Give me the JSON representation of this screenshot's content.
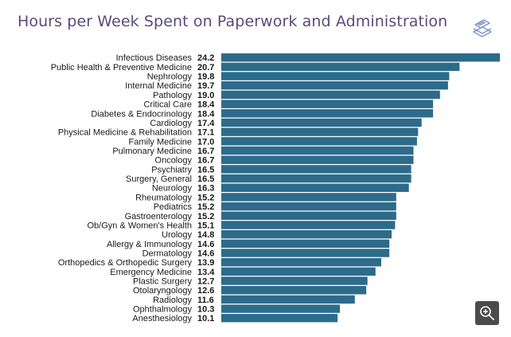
{
  "page": {
    "title": "Hours per Week Spent on Paperwork and Administration"
  },
  "colors": {
    "bar": "#2d6b8b",
    "title": "#5b4a7a",
    "text": "#1a1a1a",
    "icon": "#7a90c9"
  },
  "icons": {
    "logo": "paperwork-stack-icon",
    "zoom": "zoom-in-icon"
  },
  "chart_data": {
    "type": "bar",
    "orientation": "horizontal",
    "title": "Hours per Week Spent on Paperwork and Administration",
    "categories": [
      "Infectious Diseases",
      "Public Health & Preventive Medicine",
      "Nephrology",
      "Internal Medicine",
      "Pathology",
      "Critical Care",
      "Diabetes & Endocrinology",
      "Cardiology",
      "Physical Medicine & Rehabilitation",
      "Family Medicine",
      "Pulmonary Medicine",
      "Oncology",
      "Psychiatry",
      "Surgery, General",
      "Neurology",
      "Rheumatology",
      "Pediatrics",
      "Gastroenterology",
      "Ob/Gyn & Women's Health",
      "Urology",
      "Allergy & Immunology",
      "Dermatology",
      "Orthopedics & Orthopedic Surgery",
      "Emergency Medicine",
      "Plastic Surgery",
      "Otolaryngology",
      "Radiology",
      "Ophthalmology",
      "Anesthesiology"
    ],
    "values": [
      24.2,
      20.7,
      19.8,
      19.7,
      19.0,
      18.4,
      18.4,
      17.4,
      17.1,
      17.0,
      16.7,
      16.7,
      16.5,
      16.5,
      16.3,
      15.2,
      15.2,
      15.2,
      15.1,
      14.8,
      14.6,
      14.6,
      13.9,
      13.4,
      12.7,
      12.6,
      11.6,
      10.3,
      10.1
    ],
    "value_labels": [
      "24.2",
      "20.7",
      "19.8",
      "19.7",
      "19.0",
      "18.4",
      "18.4",
      "17.4",
      "17.1",
      "17.0",
      "16.7",
      "16.7",
      "16.5",
      "16.5",
      "16.3",
      "15.2",
      "15.2",
      "15.2",
      "15.1",
      "14.8",
      "14.6",
      "14.6",
      "13.9",
      "13.4",
      "12.7",
      "12.6",
      "11.6",
      "10.3",
      "10.1"
    ],
    "grid": false,
    "legend": "none"
  }
}
